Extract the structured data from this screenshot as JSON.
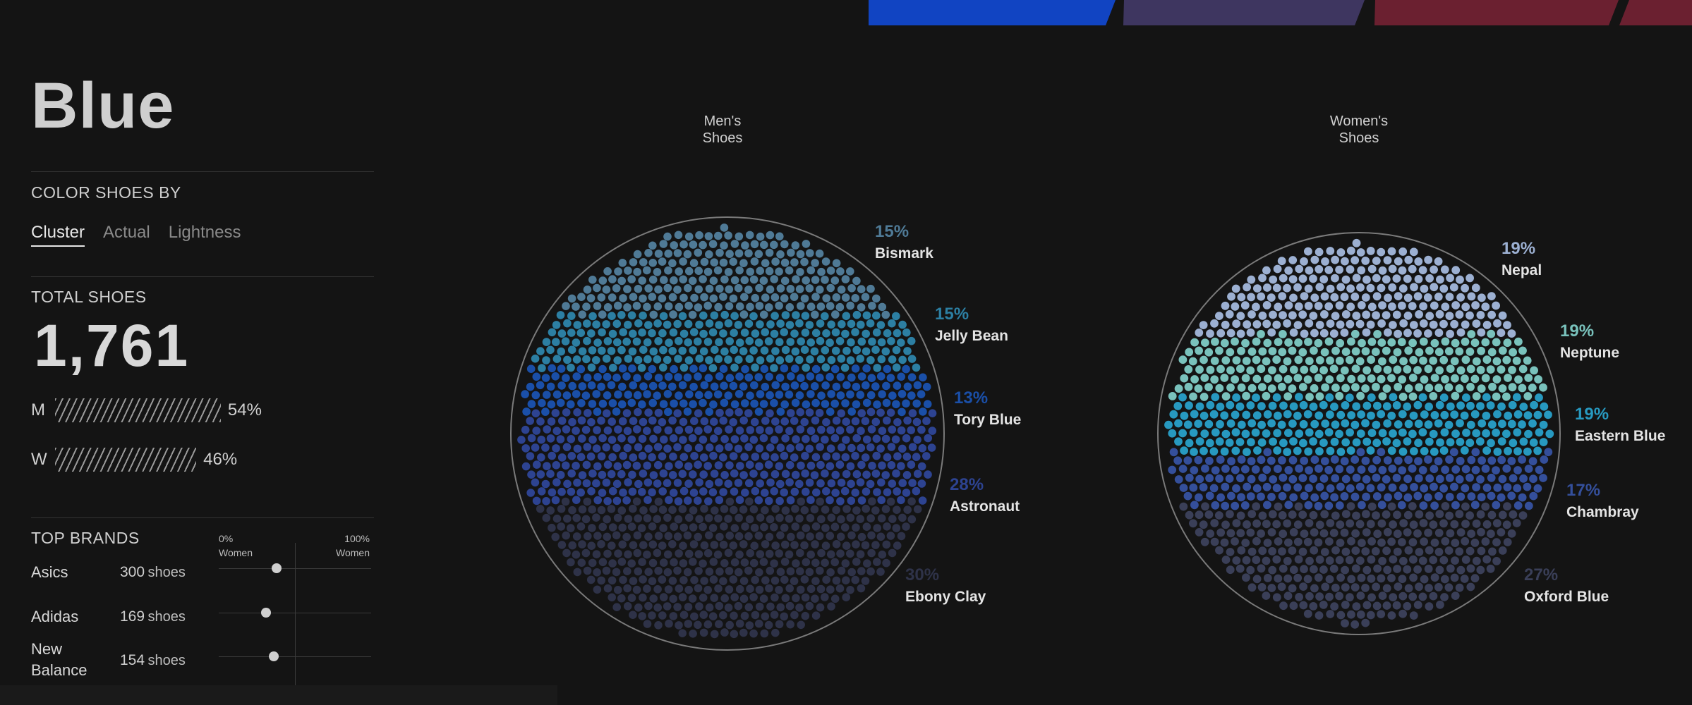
{
  "palette_tabs": [
    {
      "name": "blue",
      "color": "#1144c2"
    },
    {
      "name": "purple",
      "color": "#3e3660"
    },
    {
      "name": "red",
      "color": "#6b2030"
    },
    {
      "name": "red-2",
      "color": "#6b2030"
    }
  ],
  "panel": {
    "title": "Blue",
    "color_by_label": "COLOR SHOES BY",
    "modes": [
      "Cluster",
      "Actual",
      "Lightness"
    ],
    "active_mode": "Cluster",
    "total_label": "TOTAL SHOES",
    "total_value": "1,761",
    "men": {
      "letter": "M",
      "pct_label": "54%",
      "value": 54
    },
    "women": {
      "letter": "W",
      "pct_label": "46%",
      "value": 46
    },
    "top_brands_label": "TOP BRANDS",
    "scale_left": [
      "0%",
      "Women"
    ],
    "scale_right": [
      "100%",
      "Women"
    ],
    "unit": "shoes",
    "brands": [
      {
        "name": "Asics",
        "name2": "",
        "count": "300",
        "women_pct": 38
      },
      {
        "name": "Adidas",
        "name2": "",
        "count": "169",
        "women_pct": 31
      },
      {
        "name": "New",
        "name2": "Balance",
        "count": "154",
        "women_pct": 36
      }
    ]
  },
  "chart_data": [
    {
      "type": "packed-circle",
      "title": [
        "Men's",
        "Shoes"
      ],
      "clusters": [
        {
          "name": "Bismark",
          "pct": 15,
          "pct_label": "15%",
          "color": "#4f7a96"
        },
        {
          "name": "Jelly Bean",
          "pct": 15,
          "pct_label": "15%",
          "color": "#2c7fa3"
        },
        {
          "name": "Tory Blue",
          "pct": 13,
          "pct_label": "13%",
          "color": "#1a4fa8"
        },
        {
          "name": "Astronaut",
          "pct": 28,
          "pct_label": "28%",
          "color": "#2d4391"
        },
        {
          "name": "Ebony Clay",
          "pct": 30,
          "pct_label": "30%",
          "color": "#2e3248"
        }
      ]
    },
    {
      "type": "packed-circle",
      "title": [
        "Women's",
        "Shoes"
      ],
      "clusters": [
        {
          "name": "Nepal",
          "pct": 19,
          "pct_label": "19%",
          "color": "#9cb0d2"
        },
        {
          "name": "Neptune",
          "pct": 19,
          "pct_label": "19%",
          "color": "#79c2bc"
        },
        {
          "name": "Eastern Blue",
          "pct": 19,
          "pct_label": "19%",
          "color": "#2799c0"
        },
        {
          "name": "Chambray",
          "pct": 17,
          "pct_label": "17%",
          "color": "#344f9b"
        },
        {
          "name": "Oxford Blue",
          "pct": 27,
          "pct_label": "27%",
          "color": "#3a3f58"
        }
      ]
    }
  ]
}
